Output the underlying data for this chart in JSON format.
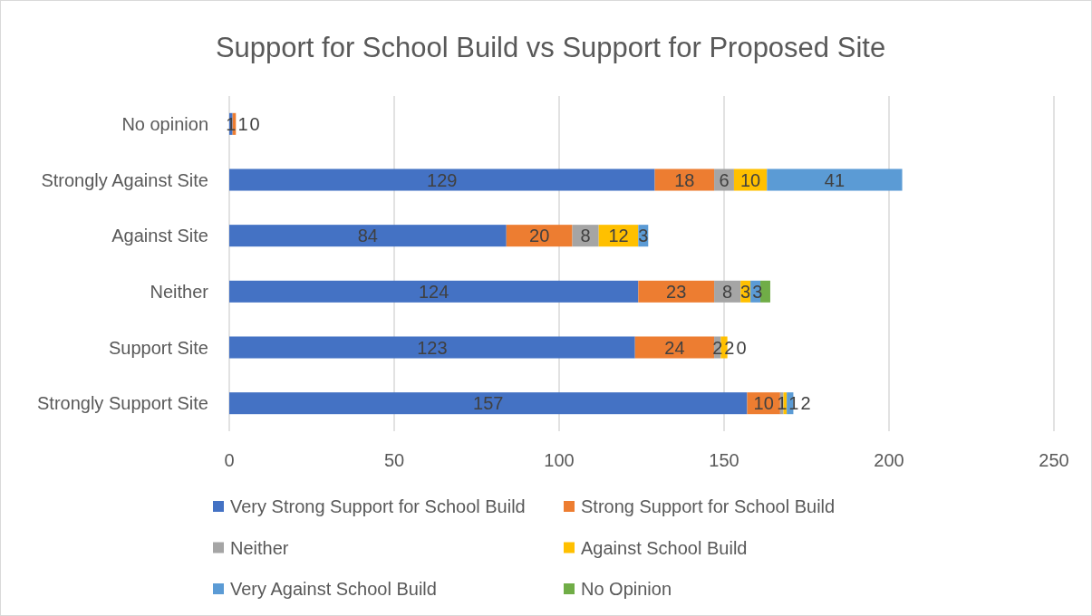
{
  "chart_data": {
    "type": "bar",
    "orientation": "horizontal",
    "stacked": true,
    "title": "Support for School Build vs Support for Proposed Site",
    "categories": [
      "No opinion",
      "Strongly Against Site",
      "Against Site",
      "Neither",
      "Support Site",
      "Strongly Support Site"
    ],
    "series": [
      {
        "name": "Very Strong Support for School Build",
        "color": "#4472c4",
        "values": [
          1,
          129,
          84,
          124,
          123,
          157
        ],
        "value_labels": [
          "1",
          "129",
          "84",
          "124",
          "123",
          "157"
        ]
      },
      {
        "name": "Strong Support for School Build",
        "color": "#ed7d31",
        "values": [
          1,
          18,
          20,
          23,
          24,
          10
        ],
        "value_labels": [
          "1",
          "18",
          "20",
          "23",
          "24",
          "10"
        ]
      },
      {
        "name": "Neither",
        "color": "#a5a5a5",
        "values": [
          0,
          6,
          8,
          8,
          2,
          1
        ],
        "value_labels": [
          "0",
          "6",
          "8",
          "8",
          "2",
          "1"
        ]
      },
      {
        "name": "Against School Build",
        "color": "#ffc000",
        "values": [
          0,
          10,
          12,
          3,
          2,
          1
        ],
        "value_labels": [
          null,
          "10",
          "12",
          "3",
          "2",
          "1"
        ]
      },
      {
        "name": "Very Against School Build",
        "color": "#5b9bd5",
        "values": [
          0,
          41,
          3,
          3,
          0,
          2
        ],
        "value_labels": [
          null,
          "41",
          "3",
          "3",
          "0",
          "2"
        ]
      },
      {
        "name": "No Opinion",
        "color": "#70ad47",
        "values": [
          0,
          0,
          0,
          3,
          0,
          0
        ]
      }
    ],
    "xlim": [
      0,
      250
    ],
    "xticks": [
      0,
      50,
      100,
      150,
      200,
      250
    ],
    "grid": "x",
    "legend": "bottom"
  }
}
